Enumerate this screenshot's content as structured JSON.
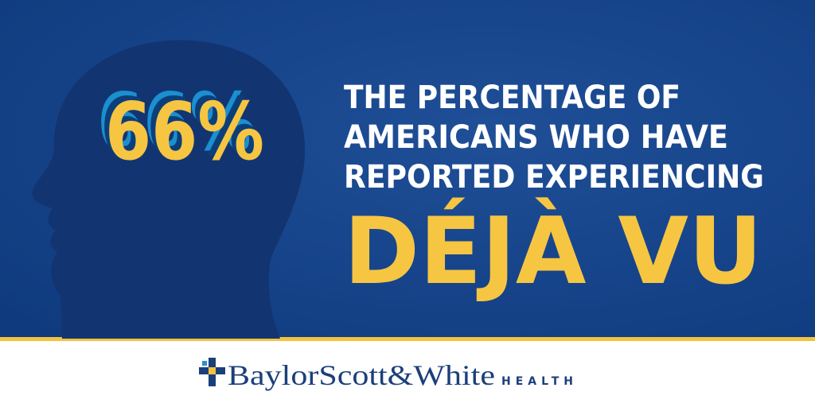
{
  "stat": "66%",
  "headline": [
    "THE PERCENTAGE OF",
    "AMERICANS WHO HAVE",
    "REPORTED EXPERIENCING"
  ],
  "highlight": "DÉJÀ VU",
  "footer": {
    "brand": "BaylorScott&White",
    "suffix": "HEALTH"
  }
}
